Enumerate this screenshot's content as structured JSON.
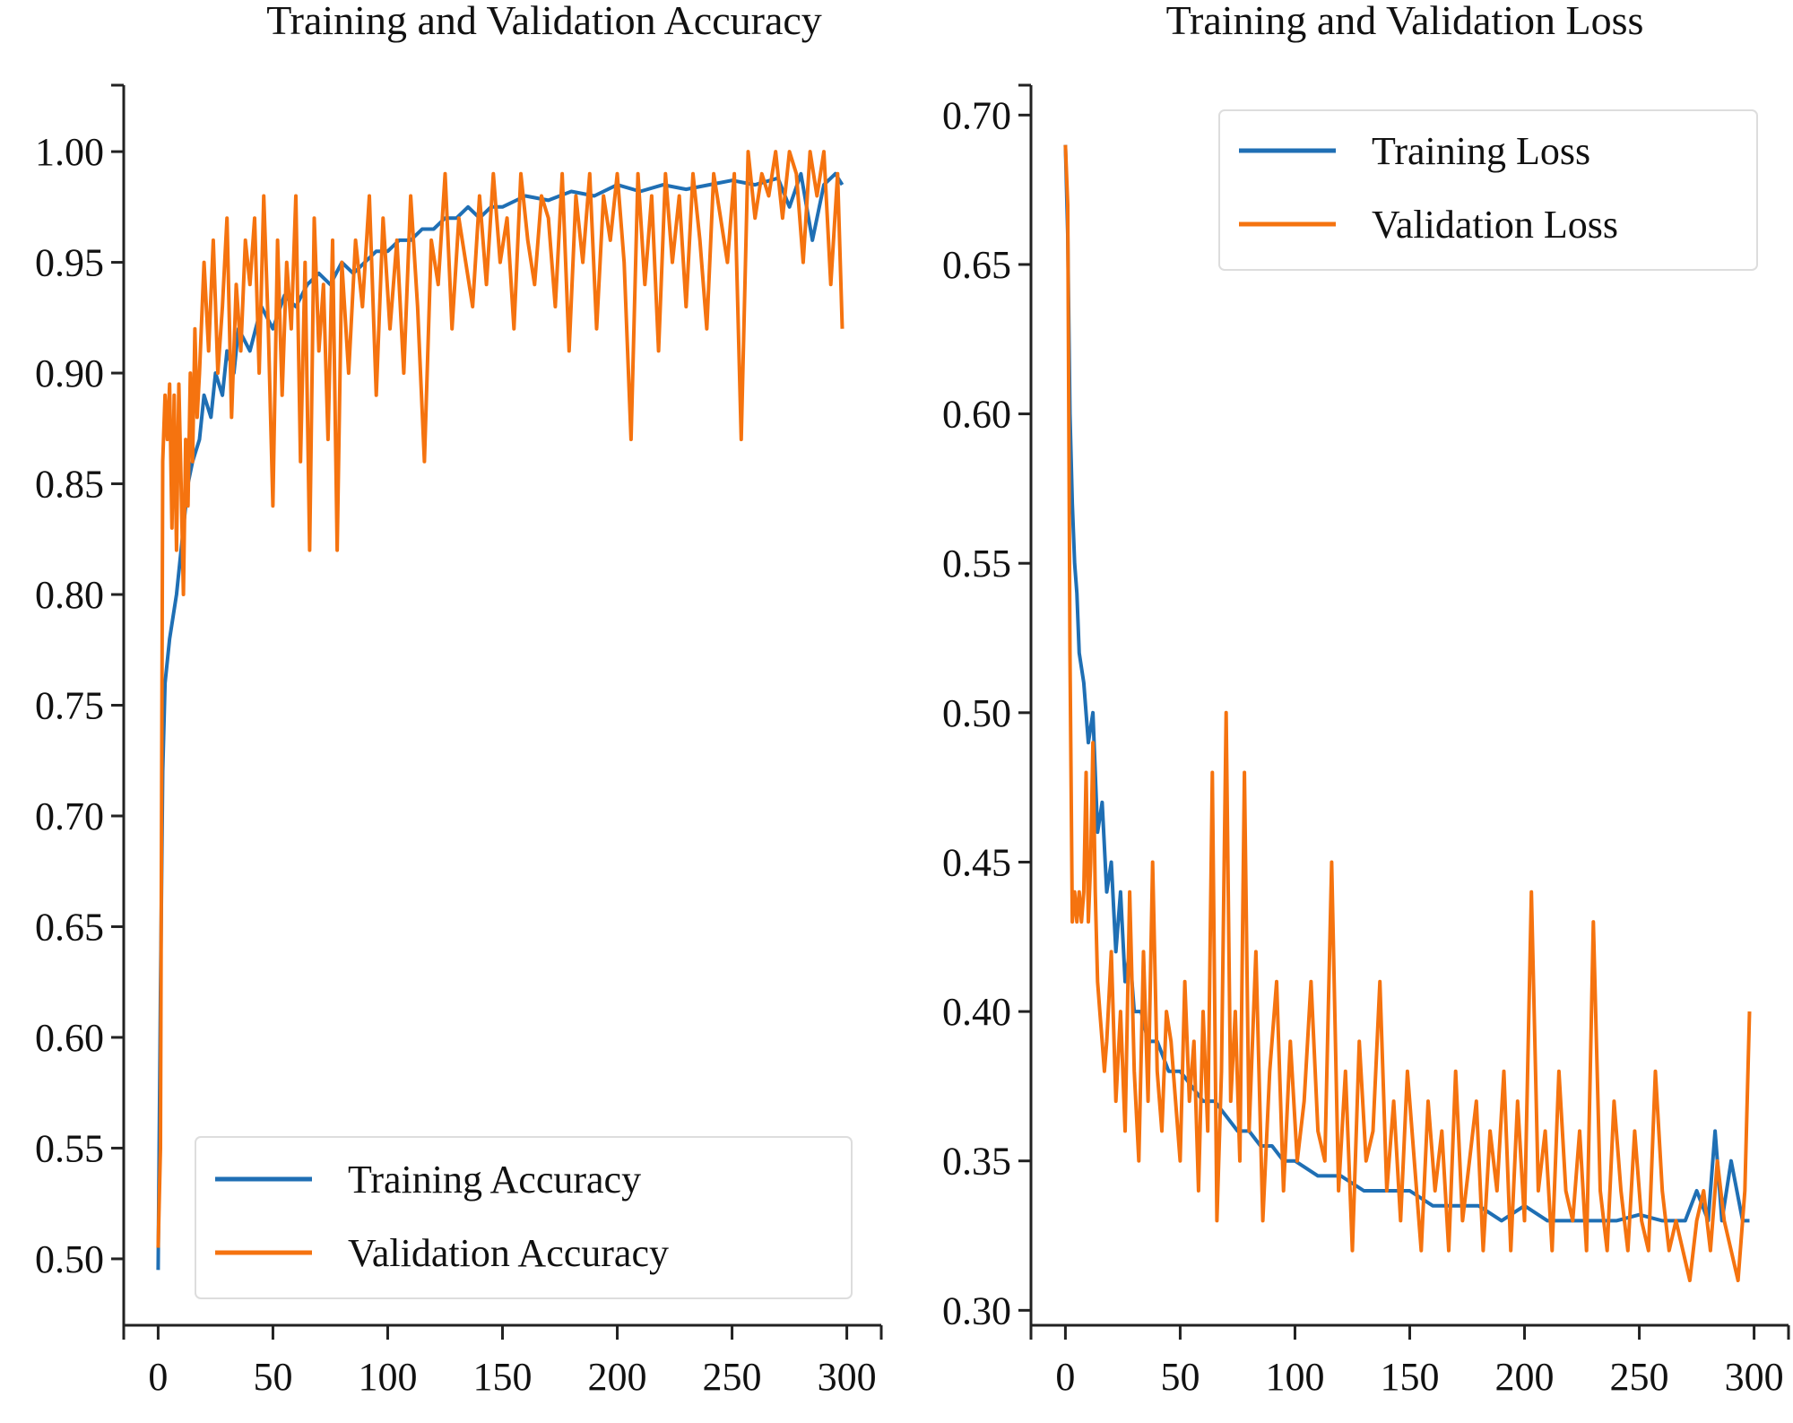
{
  "chart_data": [
    {
      "id": "accuracy",
      "type": "line",
      "title": "Training and Validation Accuracy",
      "xlabel": "",
      "ylabel": "",
      "xlim": [
        -15,
        315
      ],
      "ylim": [
        0.47,
        1.03
      ],
      "xticks": [
        0,
        50,
        100,
        150,
        200,
        250,
        300
      ],
      "xtick_labels": [
        "0",
        "50",
        "100",
        "150",
        "200",
        "250",
        "300"
      ],
      "yticks": [
        0.5,
        0.55,
        0.6,
        0.65,
        0.7,
        0.75,
        0.8,
        0.85,
        0.9,
        0.95,
        1.0
      ],
      "ytick_labels": [
        "0.50",
        "0.55",
        "0.60",
        "0.65",
        "0.70",
        "0.75",
        "0.80",
        "0.85",
        "0.90",
        "0.95",
        "1.00"
      ],
      "legend_position": "bottom-right",
      "series": [
        {
          "name": "Training Accuracy",
          "color": "#1f6fb4",
          "x": [
            0,
            1,
            2,
            3,
            5,
            8,
            10,
            13,
            15,
            18,
            20,
            23,
            25,
            28,
            30,
            33,
            35,
            40,
            45,
            50,
            55,
            60,
            65,
            70,
            75,
            80,
            85,
            90,
            95,
            100,
            105,
            110,
            115,
            120,
            125,
            130,
            135,
            140,
            145,
            150,
            160,
            170,
            180,
            190,
            200,
            210,
            220,
            230,
            240,
            250,
            260,
            270,
            275,
            280,
            285,
            290,
            295,
            298
          ],
          "y": [
            0.495,
            0.62,
            0.72,
            0.76,
            0.78,
            0.8,
            0.82,
            0.85,
            0.86,
            0.87,
            0.89,
            0.88,
            0.9,
            0.89,
            0.91,
            0.9,
            0.92,
            0.91,
            0.93,
            0.92,
            0.935,
            0.93,
            0.94,
            0.945,
            0.94,
            0.95,
            0.945,
            0.95,
            0.955,
            0.955,
            0.96,
            0.96,
            0.965,
            0.965,
            0.97,
            0.97,
            0.975,
            0.97,
            0.975,
            0.975,
            0.98,
            0.978,
            0.982,
            0.98,
            0.985,
            0.982,
            0.985,
            0.983,
            0.985,
            0.987,
            0.985,
            0.988,
            0.975,
            0.99,
            0.96,
            0.985,
            0.99,
            0.985
          ]
        },
        {
          "name": "Validation Accuracy",
          "color": "#f5730f",
          "x": [
            0,
            1,
            2,
            3,
            4,
            5,
            6,
            7,
            8,
            9,
            10,
            11,
            12,
            13,
            14,
            15,
            16,
            17,
            18,
            20,
            22,
            24,
            26,
            28,
            30,
            32,
            34,
            36,
            38,
            40,
            42,
            44,
            46,
            48,
            50,
            52,
            54,
            56,
            58,
            60,
            62,
            64,
            66,
            68,
            70,
            72,
            74,
            76,
            78,
            80,
            83,
            86,
            89,
            92,
            95,
            98,
            101,
            104,
            107,
            110,
            113,
            116,
            119,
            122,
            125,
            128,
            131,
            134,
            137,
            140,
            143,
            146,
            149,
            152,
            155,
            158,
            161,
            164,
            167,
            170,
            173,
            176,
            179,
            182,
            185,
            188,
            191,
            194,
            197,
            200,
            203,
            206,
            209,
            212,
            215,
            218,
            221,
            224,
            227,
            230,
            233,
            236,
            239,
            242,
            245,
            248,
            251,
            254,
            257,
            260,
            263,
            266,
            269,
            272,
            275,
            278,
            281,
            284,
            287,
            290,
            293,
            296,
            298
          ],
          "y": [
            0.505,
            0.55,
            0.86,
            0.89,
            0.87,
            0.895,
            0.83,
            0.89,
            0.82,
            0.895,
            0.85,
            0.8,
            0.87,
            0.84,
            0.9,
            0.86,
            0.92,
            0.88,
            0.9,
            0.95,
            0.91,
            0.96,
            0.9,
            0.93,
            0.97,
            0.88,
            0.94,
            0.91,
            0.96,
            0.94,
            0.97,
            0.9,
            0.98,
            0.92,
            0.84,
            0.96,
            0.89,
            0.95,
            0.92,
            0.98,
            0.86,
            0.95,
            0.82,
            0.97,
            0.91,
            0.94,
            0.87,
            0.96,
            0.82,
            0.95,
            0.9,
            0.96,
            0.93,
            0.98,
            0.89,
            0.97,
            0.92,
            0.96,
            0.9,
            0.98,
            0.93,
            0.86,
            0.96,
            0.94,
            0.99,
            0.92,
            0.97,
            0.95,
            0.93,
            0.98,
            0.94,
            0.99,
            0.95,
            0.97,
            0.92,
            0.99,
            0.96,
            0.94,
            0.98,
            0.97,
            0.93,
            0.99,
            0.91,
            0.98,
            0.95,
            0.99,
            0.92,
            0.98,
            0.96,
            0.99,
            0.95,
            0.87,
            0.99,
            0.94,
            0.98,
            0.91,
            0.99,
            0.95,
            0.98,
            0.93,
            0.99,
            0.96,
            0.92,
            0.99,
            0.97,
            0.95,
            0.99,
            0.87,
            1.0,
            0.97,
            0.99,
            0.98,
            1.0,
            0.97,
            1.0,
            0.99,
            0.95,
            1.0,
            0.98,
            1.0,
            0.94,
            0.99,
            0.92
          ]
        }
      ]
    },
    {
      "id": "loss",
      "type": "line",
      "title": "Training and Validation Loss",
      "xlabel": "",
      "ylabel": "",
      "xlim": [
        -15,
        315
      ],
      "ylim": [
        0.295,
        0.71
      ],
      "xticks": [
        0,
        50,
        100,
        150,
        200,
        250,
        300
      ],
      "xtick_labels": [
        "0",
        "50",
        "100",
        "150",
        "200",
        "250",
        "300"
      ],
      "yticks": [
        0.3,
        0.35,
        0.4,
        0.45,
        0.5,
        0.55,
        0.6,
        0.65,
        0.7
      ],
      "ytick_labels": [
        "0.30",
        "0.35",
        "0.40",
        "0.45",
        "0.50",
        "0.55",
        "0.60",
        "0.65",
        "0.70"
      ],
      "legend_position": "top-right",
      "series": [
        {
          "name": "Training Loss",
          "color": "#1f6fb4",
          "x": [
            0,
            1,
            2,
            3,
            4,
            5,
            6,
            8,
            10,
            12,
            14,
            16,
            18,
            20,
            22,
            24,
            26,
            28,
            30,
            33,
            36,
            40,
            45,
            50,
            55,
            60,
            65,
            70,
            75,
            80,
            85,
            90,
            95,
            100,
            110,
            120,
            130,
            140,
            150,
            160,
            170,
            180,
            190,
            200,
            210,
            220,
            230,
            240,
            250,
            260,
            270,
            275,
            280,
            283,
            286,
            290,
            295,
            298
          ],
          "y": [
            0.69,
            0.66,
            0.6,
            0.57,
            0.55,
            0.54,
            0.52,
            0.51,
            0.49,
            0.5,
            0.46,
            0.47,
            0.44,
            0.45,
            0.42,
            0.44,
            0.41,
            0.42,
            0.4,
            0.4,
            0.39,
            0.39,
            0.38,
            0.38,
            0.375,
            0.37,
            0.37,
            0.365,
            0.36,
            0.36,
            0.355,
            0.355,
            0.35,
            0.35,
            0.345,
            0.345,
            0.34,
            0.34,
            0.34,
            0.335,
            0.335,
            0.335,
            0.33,
            0.335,
            0.33,
            0.33,
            0.33,
            0.33,
            0.332,
            0.33,
            0.33,
            0.34,
            0.33,
            0.36,
            0.33,
            0.35,
            0.33,
            0.33
          ]
        },
        {
          "name": "Validation Loss",
          "color": "#f5730f",
          "x": [
            0,
            1,
            2,
            3,
            4,
            5,
            6,
            7,
            8,
            9,
            10,
            11,
            12,
            13,
            14,
            15,
            16,
            17,
            18,
            20,
            22,
            24,
            26,
            28,
            30,
            32,
            34,
            36,
            38,
            40,
            42,
            44,
            46,
            48,
            50,
            52,
            54,
            56,
            58,
            60,
            62,
            64,
            66,
            68,
            70,
            72,
            74,
            76,
            78,
            80,
            83,
            86,
            89,
            92,
            95,
            98,
            101,
            104,
            107,
            110,
            113,
            116,
            119,
            122,
            125,
            128,
            131,
            134,
            137,
            140,
            143,
            146,
            149,
            152,
            155,
            158,
            161,
            164,
            167,
            170,
            173,
            176,
            179,
            182,
            185,
            188,
            191,
            194,
            197,
            200,
            203,
            206,
            209,
            212,
            215,
            218,
            221,
            224,
            227,
            230,
            233,
            236,
            239,
            242,
            245,
            248,
            251,
            254,
            257,
            260,
            263,
            266,
            269,
            272,
            275,
            278,
            281,
            284,
            287,
            290,
            293,
            296,
            298
          ],
          "y": [
            0.69,
            0.67,
            0.52,
            0.43,
            0.44,
            0.43,
            0.44,
            0.43,
            0.44,
            0.48,
            0.43,
            0.45,
            0.49,
            0.44,
            0.41,
            0.4,
            0.39,
            0.38,
            0.39,
            0.42,
            0.37,
            0.4,
            0.36,
            0.44,
            0.38,
            0.35,
            0.42,
            0.37,
            0.45,
            0.38,
            0.36,
            0.4,
            0.39,
            0.37,
            0.35,
            0.41,
            0.37,
            0.39,
            0.34,
            0.4,
            0.36,
            0.48,
            0.33,
            0.38,
            0.5,
            0.37,
            0.4,
            0.35,
            0.48,
            0.36,
            0.42,
            0.33,
            0.38,
            0.41,
            0.34,
            0.39,
            0.35,
            0.37,
            0.41,
            0.36,
            0.35,
            0.45,
            0.34,
            0.38,
            0.32,
            0.39,
            0.35,
            0.36,
            0.41,
            0.34,
            0.37,
            0.33,
            0.38,
            0.35,
            0.32,
            0.37,
            0.34,
            0.36,
            0.32,
            0.38,
            0.33,
            0.35,
            0.37,
            0.32,
            0.36,
            0.34,
            0.38,
            0.32,
            0.37,
            0.33,
            0.44,
            0.34,
            0.36,
            0.32,
            0.38,
            0.34,
            0.33,
            0.36,
            0.32,
            0.43,
            0.34,
            0.32,
            0.37,
            0.34,
            0.32,
            0.36,
            0.33,
            0.32,
            0.38,
            0.34,
            0.32,
            0.33,
            0.32,
            0.31,
            0.33,
            0.34,
            0.32,
            0.35,
            0.33,
            0.32,
            0.31,
            0.34,
            0.4
          ]
        }
      ]
    }
  ]
}
